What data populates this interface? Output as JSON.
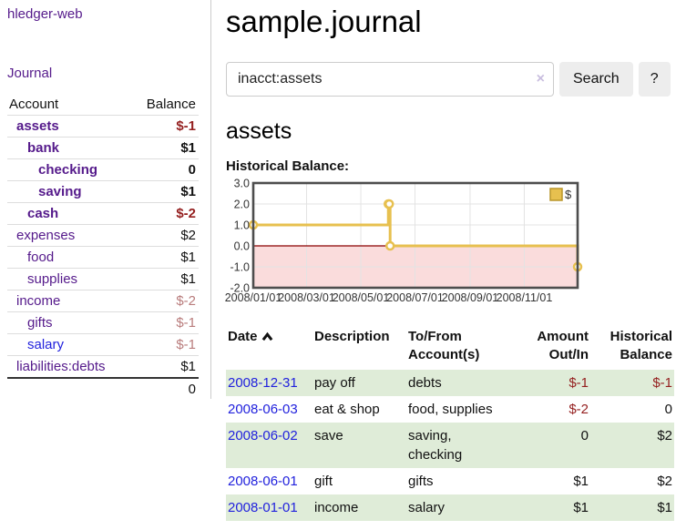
{
  "colors": {
    "link_purple": "#551a8b",
    "link_blue": "#2222dd",
    "negative_red": "#941f1f",
    "negative_rose": "#b97c7c",
    "row_green": "#dfecd8",
    "button_bg": "#ededed",
    "divider": "#cccccc",
    "chart_gold": "#e7c04f",
    "chart_gold_dark": "#b8952a",
    "chart_pink": "#fadcdc",
    "chart_zero_line": "#8b0000",
    "chart_border": "#4d4d4d",
    "chart_grid": "#e3e3e3",
    "chart_text": "#333333"
  },
  "icons": {
    "clear_search": "×",
    "sort_date": "chevron-up"
  },
  "sidebar": {
    "brand": "hledger-web",
    "journal_link": "Journal",
    "accounts": {
      "header_account": "Account",
      "header_balance": "Balance",
      "rows": [
        {
          "name": "assets",
          "balance": "$-1"
        },
        {
          "name": "bank",
          "balance": "$1"
        },
        {
          "name": "checking",
          "balance": "0"
        },
        {
          "name": "saving",
          "balance": "$1"
        },
        {
          "name": "cash",
          "balance": "$-2"
        },
        {
          "name": "expenses",
          "balance": "$2"
        },
        {
          "name": "food",
          "balance": "$1"
        },
        {
          "name": "supplies",
          "balance": "$1"
        },
        {
          "name": "income",
          "balance": "$-2"
        },
        {
          "name": "gifts",
          "balance": "$-1"
        },
        {
          "name": "salary",
          "balance": "$-1"
        },
        {
          "name": "liabilities:debts",
          "balance": "$1"
        }
      ],
      "total": "0"
    }
  },
  "main": {
    "title": "sample.journal",
    "search": {
      "value": "inacct:assets",
      "search_button": "Search",
      "help_button": "?"
    },
    "account_heading": "assets",
    "chart_title": "Historical Balance:"
  },
  "chart_data": {
    "type": "line",
    "step": true,
    "title": "Historical Balance",
    "series": [
      {
        "name": "$",
        "points": [
          {
            "date": "2008-01-01",
            "value": 1
          },
          {
            "date": "2008-06-01",
            "value": 2
          },
          {
            "date": "2008-06-02",
            "value": 2
          },
          {
            "date": "2008-06-03",
            "value": 0
          },
          {
            "date": "2008-12-31",
            "value": -1
          }
        ]
      }
    ],
    "x_range": [
      "2008-01-01",
      "2008-12-31"
    ],
    "x_ticks": [
      {
        "date": "2008-01-01",
        "label": "2008/01/01"
      },
      {
        "date": "2008-03-01",
        "label": "2008/03/01"
      },
      {
        "date": "2008-05-01",
        "label": "2008/05/01"
      },
      {
        "date": "2008-07-01",
        "label": "2008/07/01"
      },
      {
        "date": "2008-09-01",
        "label": "2008/09/01"
      },
      {
        "date": "2008-11-01",
        "label": "2008/11/01"
      }
    ],
    "y_ticks": [
      {
        "value": 3,
        "label": "3.0"
      },
      {
        "value": 2,
        "label": "2.0"
      },
      {
        "value": 1,
        "label": "1.0"
      },
      {
        "value": 0,
        "label": "0.0"
      },
      {
        "value": -1,
        "label": "-1.0"
      },
      {
        "value": -2,
        "label": "-2.0"
      }
    ],
    "ylim": [
      -2,
      3
    ],
    "grid": true,
    "zero_line": true,
    "negative_region_shaded": true,
    "legend": {
      "label": "$",
      "position": "top-right"
    }
  },
  "register": {
    "headers": {
      "date": "Date",
      "description": "Description",
      "accounts": "To/From Account(s)",
      "amount": "Amount Out/In",
      "balance": "Historical Balance"
    },
    "rows": [
      {
        "date": "2008-12-31",
        "description": "pay off",
        "accounts": "debts",
        "amount": "$-1",
        "balance": "$-1"
      },
      {
        "date": "2008-06-03",
        "description": "eat & shop",
        "accounts": "food, supplies",
        "amount": "$-2",
        "balance": "0"
      },
      {
        "date": "2008-06-02",
        "description": "save",
        "accounts": "saving, checking",
        "amount": "0",
        "balance": "$2"
      },
      {
        "date": "2008-06-01",
        "description": "gift",
        "accounts": "gifts",
        "amount": "$1",
        "balance": "$2"
      },
      {
        "date": "2008-01-01",
        "description": "income",
        "accounts": "salary",
        "amount": "$1",
        "balance": "$1"
      }
    ]
  }
}
